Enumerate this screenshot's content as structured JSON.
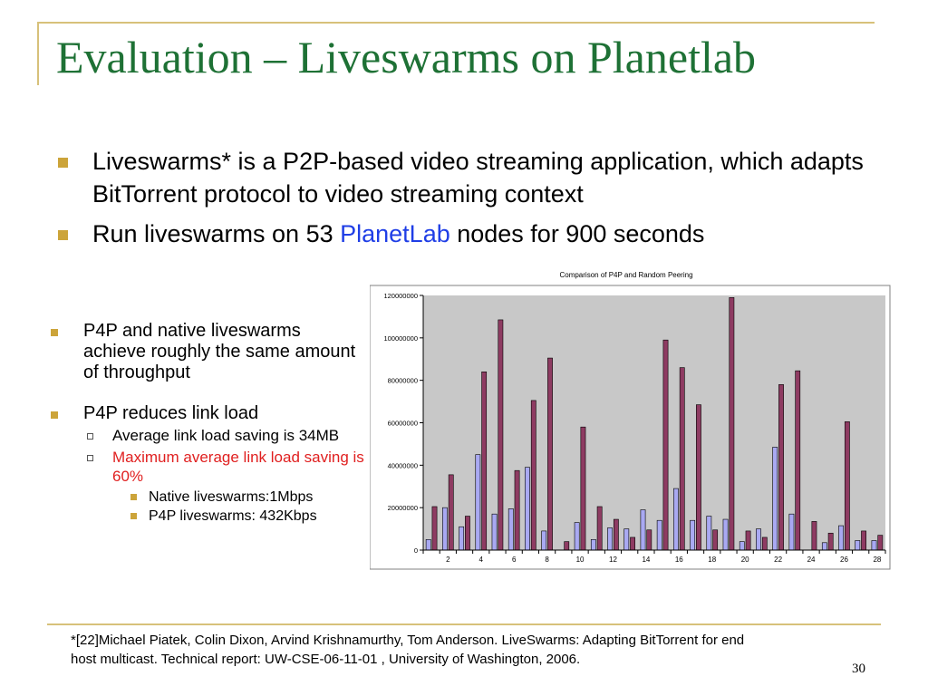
{
  "slide": {
    "title": "Evaluation – Liveswarms on Planetlab",
    "bullets": [
      {
        "text": "Liveswarms* is a P2P-based video streaming application, which adapts BitTorrent protocol to video streaming context"
      },
      {
        "prefix": "Run liveswarms on 53 ",
        "link": "PlanetLab",
        "suffix": " nodes for 900 seconds"
      }
    ],
    "left_points": {
      "p1": "P4P and native liveswarms achieve roughly the same amount of throughput",
      "p2": "P4P reduces link load",
      "sub1": "Average link load saving is 34MB",
      "sub2": "Maximum average link load saving is 60%",
      "subsub1": "Native liveswarms:1Mbps",
      "subsub2": "P4P liveswarms: 432Kbps"
    },
    "footnote_line1": "*[22]Michael Piatek, Colin Dixon, Arvind Krishnamurthy, Tom Anderson. LiveSwarms: Adapting BitTorrent for end",
    "footnote_line2": "host multicast. Technical report: UW-CSE-06-11-01 , University of Washington, 2006.",
    "page_number": "30"
  },
  "colors": {
    "title": "#1e7135",
    "bullet": "#cca43a",
    "link": "#1f3ee6",
    "highlight": "#e02020",
    "plot_bg": "#c8c8c8",
    "series1": "#a9a9f2",
    "series2": "#8e3b62"
  },
  "chart_data": {
    "type": "bar",
    "title": "Comparison of P4P and Random Peering",
    "categories": [
      1,
      2,
      3,
      4,
      5,
      6,
      7,
      8,
      9,
      10,
      11,
      12,
      13,
      14,
      15,
      16,
      17,
      18,
      19,
      20,
      21,
      22,
      23,
      24,
      25,
      26,
      27,
      28
    ],
    "xtick_labels": [
      "2",
      "4",
      "6",
      "8",
      "10",
      "12",
      "14",
      "16",
      "18",
      "20",
      "22",
      "24",
      "26",
      "28"
    ],
    "ylim": [
      0,
      120000000
    ],
    "yticks": [
      0,
      20000000,
      40000000,
      60000000,
      80000000,
      100000000,
      120000000
    ],
    "ytick_labels": [
      "0",
      "20000000",
      "40000000",
      "60000000",
      "80000000",
      "100000000",
      "120000000"
    ],
    "grid": false,
    "series": [
      {
        "values": [
          5000000,
          20000000,
          11000000,
          45000000,
          17000000,
          19500000,
          39000000,
          9000000,
          0,
          13000000,
          5000000,
          10500000,
          10000000,
          19000000,
          14000000,
          29000000,
          14000000,
          16000000,
          14500000,
          4000000,
          10000000,
          48500000,
          17000000,
          0,
          3500000,
          11500000,
          4500000,
          4500000
        ]
      },
      {
        "values": [
          20500000,
          35500000,
          16000000,
          84000000,
          108500000,
          37500000,
          70500000,
          90500000,
          4000000,
          58000000,
          20500000,
          14500000,
          6000000,
          9500000,
          99000000,
          86000000,
          68500000,
          9500000,
          119000000,
          9000000,
          6000000,
          78000000,
          84500000,
          13500000,
          8000000,
          60500000,
          9000000,
          7000000
        ]
      }
    ]
  }
}
